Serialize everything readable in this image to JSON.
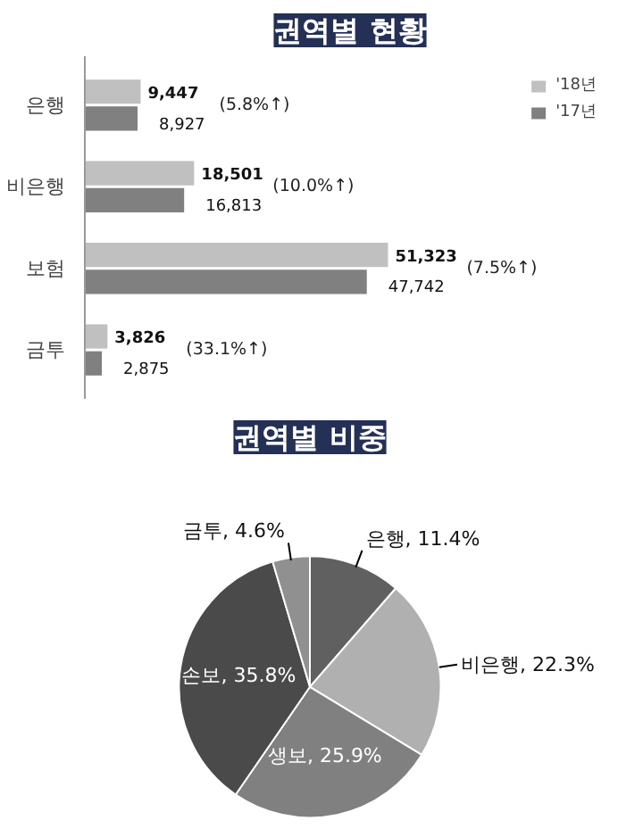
{
  "chart_data": [
    {
      "type": "bar",
      "title": "권역별 현황",
      "orientation": "horizontal",
      "categories": [
        "은행",
        "비은행",
        "보험",
        "금투"
      ],
      "series": [
        {
          "name": "'18년",
          "color": "#c0c0c0",
          "values": [
            9447,
            18501,
            51323,
            3826
          ],
          "value_labels": [
            "9,447",
            "18,501",
            "51,323",
            "3,826"
          ]
        },
        {
          "name": "'17년",
          "color": "#808080",
          "values": [
            8927,
            16813,
            47742,
            2875
          ],
          "value_labels": [
            "8,927",
            "16,813",
            "47,742",
            "2,875"
          ]
        }
      ],
      "legend": "top right",
      "annotations": [
        "(5.8%↑)",
        "(10.0%↑)",
        "(7.5%↑)",
        "(33.1%↑)"
      ]
    },
    {
      "type": "pie",
      "title": "권역별 비중",
      "categories": [
        "은행",
        "비은행",
        "생보",
        "손보",
        "금투"
      ],
      "values": [
        11.4,
        22.3,
        25.9,
        35.8,
        4.6
      ],
      "value_labels": [
        "11.4%",
        "22.3%",
        "25.9%",
        "35.8%",
        "4.6%"
      ],
      "colors": [
        "#606060",
        "#b0b0b0",
        "#808080",
        "#4a4a4a",
        "#909090"
      ]
    }
  ]
}
